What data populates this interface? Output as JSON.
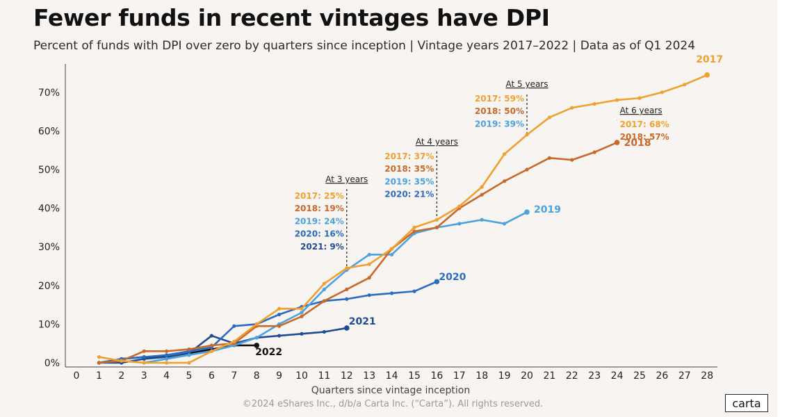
{
  "title": "Fewer funds in recent vintages have DPI",
  "subtitle": "Percent of funds with DPI over zero by quarters since inception | Vintage years 2017–2022 | Data as of Q1 2024",
  "footer": "©2024 eShares Inc., d/b/a Carta Inc. (“Carta”). All rights reserved.",
  "logo_text": "carta",
  "colors": {
    "2017": "#f0a030",
    "2018": "#c8692a",
    "2019": "#4aa3e0",
    "2020": "#2a6cc0",
    "2021": "#1f4a94",
    "2022": "#111111"
  },
  "chart_data": {
    "type": "line",
    "xlabel": "Quarters since vintage inception",
    "ylabel": "",
    "xlim": [
      0,
      28
    ],
    "ylim": [
      0,
      75
    ],
    "x_ticks": [
      0,
      1,
      2,
      3,
      4,
      5,
      6,
      7,
      8,
      9,
      10,
      11,
      12,
      13,
      14,
      15,
      16,
      17,
      18,
      19,
      20,
      21,
      22,
      23,
      24,
      25,
      26,
      27,
      28
    ],
    "y_ticks": [
      0,
      10,
      20,
      30,
      40,
      50,
      60,
      70
    ],
    "y_tick_labels": [
      "0%",
      "10%",
      "20%",
      "30%",
      "40%",
      "50%",
      "60%",
      "70%"
    ],
    "grid": false,
    "series": [
      {
        "name": "2017",
        "x": [
          1,
          2,
          3,
          4,
          5,
          6,
          7,
          8,
          9,
          10,
          11,
          12,
          13,
          14,
          15,
          16,
          17,
          18,
          19,
          20,
          21,
          22,
          23,
          24,
          25,
          26,
          27,
          28
        ],
        "values": [
          1.5,
          0.5,
          0,
          0,
          0,
          3,
          5.5,
          10,
          14,
          14,
          20.5,
          24.5,
          25.5,
          29.5,
          35,
          37,
          40.5,
          45.5,
          54,
          59,
          63.5,
          66,
          67,
          68,
          68.5,
          70,
          72,
          74.5
        ]
      },
      {
        "name": "2018",
        "x": [
          1,
          2,
          3,
          4,
          5,
          6,
          7,
          8,
          9,
          10,
          11,
          12,
          13,
          14,
          15,
          16,
          17,
          18,
          19,
          20,
          21,
          22,
          23,
          24
        ],
        "values": [
          0,
          0.5,
          3,
          3,
          3.5,
          4.5,
          5,
          9.5,
          9.5,
          12,
          16,
          19,
          22,
          29.5,
          34,
          35,
          40,
          43.5,
          47,
          50,
          53,
          52.5,
          54.5,
          57
        ]
      },
      {
        "name": "2019",
        "x": [
          1,
          2,
          3,
          4,
          5,
          6,
          7,
          8,
          9,
          10,
          11,
          12,
          13,
          14,
          15,
          16,
          17,
          18,
          19,
          20
        ],
        "values": [
          0,
          0.5,
          0,
          1,
          2,
          3,
          4.5,
          6.5,
          10,
          13,
          19,
          24,
          28,
          28,
          33.5,
          35,
          36,
          37,
          36,
          39
        ]
      },
      {
        "name": "2020",
        "x": [
          1,
          2,
          3,
          4,
          5,
          6,
          7,
          8,
          9,
          10,
          11,
          12,
          13,
          14,
          15,
          16
        ],
        "values": [
          0,
          1,
          1.5,
          2,
          3,
          4,
          9.5,
          10,
          12.5,
          14.5,
          16,
          16.5,
          17.5,
          18,
          18.5,
          21
        ]
      },
      {
        "name": "2021",
        "x": [
          1,
          2,
          3,
          4,
          5,
          6,
          7,
          8,
          9,
          10,
          11,
          12
        ],
        "values": [
          0,
          0,
          1,
          1.5,
          2.5,
          7,
          5,
          6.5,
          7,
          7.5,
          8,
          9
        ]
      },
      {
        "name": "2022",
        "x": [
          1,
          2,
          3,
          4,
          5,
          6,
          7,
          8
        ],
        "values": [
          0,
          1,
          1.5,
          1.5,
          2.5,
          3.5,
          4.5,
          4.5
        ]
      }
    ],
    "annotations": [
      {
        "x": 12,
        "heading": "At 3 years",
        "labels": [
          {
            "series": "2017",
            "text": "2017: 25%"
          },
          {
            "series": "2018",
            "text": "2018: 19%"
          },
          {
            "series": "2019",
            "text": "2019: 24%"
          },
          {
            "series": "2020",
            "text": "2020: 16%"
          },
          {
            "series": "2021",
            "text": "2021: 9%"
          }
        ]
      },
      {
        "x": 16,
        "heading": "At 4 years",
        "labels": [
          {
            "series": "2017",
            "text": "2017: 37%"
          },
          {
            "series": "2018",
            "text": "2018: 35%"
          },
          {
            "series": "2019",
            "text": "2019: 35%"
          },
          {
            "series": "2020",
            "text": "2020: 21%"
          }
        ]
      },
      {
        "x": 20,
        "heading": "At 5 years",
        "labels": [
          {
            "series": "2017",
            "text": "2017: 59%"
          },
          {
            "series": "2018",
            "text": "2018: 50%"
          },
          {
            "series": "2019",
            "text": "2019: 39%"
          }
        ]
      },
      {
        "x": 24,
        "heading": "At 6 years",
        "labels": [
          {
            "series": "2017",
            "text": "2017: 68%"
          },
          {
            "series": "2018",
            "text": "2018: 57%"
          }
        ]
      }
    ]
  }
}
